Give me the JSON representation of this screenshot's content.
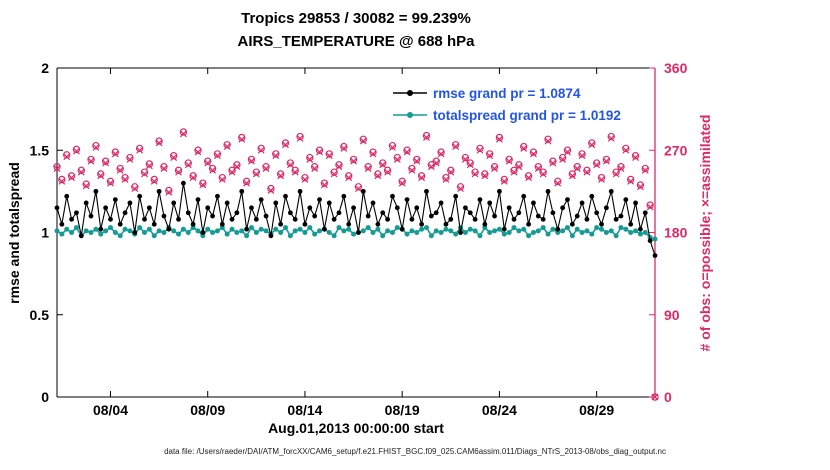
{
  "caption": "data file: /Users/raeder/DAI/ATM_forcXX/CAM6_setup/f.e21.FHIST_BGC.f09_025.CAM6assim.011/Diags_NTrS_2013-08/obs_diag_output.nc",
  "colors": {
    "rmse": "#000000",
    "totalspread": "#149c94",
    "obs": "#dd2a66",
    "legend_text": "#2255e6",
    "axis": "#000000"
  },
  "chart_data": {
    "type": "line",
    "title_line1": "Tropics 29853 / 30082 = 99.239%",
    "title_line2": "AIRS_TEMPERATURE @ 688 hPa",
    "xlabel": "Aug.01,2013 00:00:00 start",
    "ylabel_left": "rmse and totalspread",
    "ylabel_right": "# of obs: o=possible; ×=assimilated",
    "xlim": [
      1.25,
      32
    ],
    "ylim_left": [
      0,
      2
    ],
    "ylim_right": [
      0,
      360
    ],
    "left_ticks": [
      0,
      0.5,
      1,
      1.5,
      2
    ],
    "left_tick_labels": [
      "0",
      "0.5",
      "1",
      "1.5",
      "2"
    ],
    "right_ticks": [
      0,
      90,
      180,
      270,
      360
    ],
    "x_ticks": [
      {
        "day": 4,
        "label": "08/04"
      },
      {
        "day": 9,
        "label": "08/09"
      },
      {
        "day": 14,
        "label": "08/14"
      },
      {
        "day": 19,
        "label": "08/19"
      },
      {
        "day": 24,
        "label": "08/24"
      },
      {
        "day": 29,
        "label": "08/29"
      }
    ],
    "x_start_day": 1.25,
    "x_step_days": 0.25,
    "legend": [
      {
        "name": "rmse grand pr = 1.0874",
        "series": "rmse"
      },
      {
        "name": "totalspread grand pr = 1.0192",
        "series": "totalspread"
      }
    ],
    "series": [
      {
        "name": "rmse grand pr = 1.0874",
        "key": "rmse",
        "axis": "left",
        "values": [
          1.15,
          1.05,
          1.22,
          1.08,
          1.12,
          0.98,
          1.18,
          1.1,
          1.25,
          1.02,
          1.15,
          1.08,
          1.2,
          1.05,
          1.12,
          1.18,
          1.0,
          1.22,
          1.08,
          1.15,
          1.05,
          1.25,
          1.1,
          1.02,
          1.18,
          1.08,
          1.3,
          1.12,
          1.05,
          1.2,
          1.0,
          1.15,
          1.1,
          1.22,
          1.05,
          1.18,
          1.08,
          1.12,
          1.25,
          1.02,
          1.15,
          1.08,
          1.2,
          1.1,
          0.98,
          1.18,
          1.05,
          1.22,
          1.12,
          1.08,
          1.25,
          1.05,
          1.15,
          1.1,
          1.2,
          1.02,
          1.18,
          1.08,
          1.12,
          1.22,
          1.05,
          1.15,
          1.0,
          1.25,
          1.1,
          1.18,
          1.05,
          1.12,
          1.08,
          1.22,
          1.15,
          1.02,
          1.2,
          1.08,
          1.15,
          1.05,
          1.25,
          1.1,
          1.12,
          1.18,
          1.05,
          1.08,
          1.22,
          1.0,
          1.15,
          1.12,
          1.08,
          1.2,
          1.05,
          1.18,
          1.1,
          1.25,
          1.02,
          1.15,
          1.08,
          1.12,
          1.22,
          1.05,
          1.18,
          1.1,
          1.08,
          1.25,
          1.12,
          1.02,
          1.15,
          1.2,
          1.05,
          1.1,
          1.18,
          1.08,
          1.22,
          1.12,
          1.05,
          1.15,
          1.25,
          1.08,
          1.1,
          1.2,
          1.05,
          1.18,
          1.02,
          1.12,
          0.95,
          0.86
        ]
      },
      {
        "name": "totalspread grand pr = 1.0192",
        "key": "totalspread",
        "axis": "left",
        "values": [
          1.01,
          0.99,
          1.02,
          1.0,
          1.03,
          0.98,
          1.01,
          1.0,
          1.02,
          0.99,
          1.01,
          1.03,
          1.0,
          0.98,
          1.02,
          1.01,
          0.99,
          1.03,
          1.0,
          1.02,
          0.98,
          1.01,
          1.0,
          1.03,
          1.01,
          0.99,
          1.02,
          1.0,
          1.03,
          1.01,
          0.98,
          1.02,
          1.0,
          1.01,
          1.03,
          0.99,
          1.02,
          1.0,
          1.01,
          0.98,
          1.03,
          1.0,
          1.02,
          1.01,
          0.99,
          1.02,
          1.0,
          1.03,
          0.98,
          1.01,
          1.02,
          1.0,
          1.03,
          0.99,
          1.01,
          1.02,
          1.0,
          0.98,
          1.03,
          1.01,
          1.02,
          0.99,
          1.0,
          1.01,
          1.03,
          1.0,
          1.02,
          0.98,
          1.01,
          1.0,
          1.03,
          1.02,
          0.99,
          1.01,
          1.0,
          1.02,
          1.03,
          0.98,
          1.01,
          1.0,
          1.02,
          1.01,
          0.99,
          1.03,
          1.0,
          1.02,
          1.01,
          0.98,
          1.03,
          1.0,
          1.01,
          1.02,
          0.99,
          1.0,
          1.03,
          1.01,
          1.02,
          0.98,
          1.0,
          1.01,
          1.03,
          0.99,
          1.02,
          1.0,
          1.01,
          1.03,
          0.98,
          1.02,
          1.0,
          1.01,
          0.99,
          1.03,
          1.02,
          1.0,
          1.01,
          0.98,
          1.03,
          1.02,
          1.0,
          1.01,
          0.99,
          1.0,
          0.97,
          0.96
        ]
      }
    ],
    "obs_series": {
      "axis": "right",
      "possible": [
        252,
        238,
        265,
        242,
        271,
        248,
        233,
        260,
        275,
        244,
        258,
        236,
        268,
        250,
        240,
        262,
        230,
        272,
        246,
        255,
        238,
        280,
        252,
        226,
        264,
        248,
        290,
        256,
        242,
        270,
        234,
        258,
        250,
        266,
        240,
        276,
        248,
        254,
        284,
        236,
        260,
        246,
        272,
        252,
        228,
        266,
        244,
        278,
        256,
        248,
        285,
        240,
        262,
        252,
        270,
        234,
        266,
        246,
        254,
        274,
        242,
        260,
        230,
        282,
        252,
        268,
        244,
        256,
        248,
        275,
        262,
        236,
        270,
        250,
        260,
        242,
        286,
        254,
        258,
        268,
        240,
        248,
        276,
        230,
        262,
        256,
        246,
        272,
        244,
        266,
        252,
        284,
        238,
        260,
        248,
        254,
        274,
        242,
        268,
        252,
        246,
        282,
        258,
        236,
        262,
        270,
        244,
        252,
        266,
        248,
        278,
        256,
        240,
        260,
        285,
        246,
        252,
        272,
        238,
        264,
        232,
        250,
        210,
        0
      ],
      "assimilated": [
        250,
        236,
        263,
        240,
        269,
        246,
        231,
        258,
        273,
        242,
        256,
        234,
        266,
        248,
        238,
        260,
        228,
        270,
        244,
        253,
        236,
        278,
        250,
        224,
        262,
        246,
        288,
        254,
        240,
        268,
        232,
        256,
        248,
        264,
        238,
        274,
        246,
        252,
        282,
        234,
        258,
        244,
        270,
        250,
        226,
        264,
        242,
        276,
        254,
        246,
        283,
        238,
        260,
        250,
        268,
        232,
        264,
        244,
        252,
        272,
        240,
        258,
        228,
        280,
        250,
        266,
        242,
        254,
        246,
        273,
        260,
        234,
        268,
        248,
        258,
        240,
        284,
        252,
        256,
        266,
        238,
        246,
        274,
        228,
        260,
        254,
        244,
        270,
        242,
        264,
        250,
        282,
        236,
        258,
        246,
        252,
        272,
        240,
        266,
        250,
        244,
        280,
        256,
        234,
        260,
        268,
        242,
        250,
        264,
        246,
        276,
        254,
        238,
        258,
        283,
        244,
        250,
        270,
        236,
        262,
        230,
        248,
        208,
        0
      ]
    }
  }
}
